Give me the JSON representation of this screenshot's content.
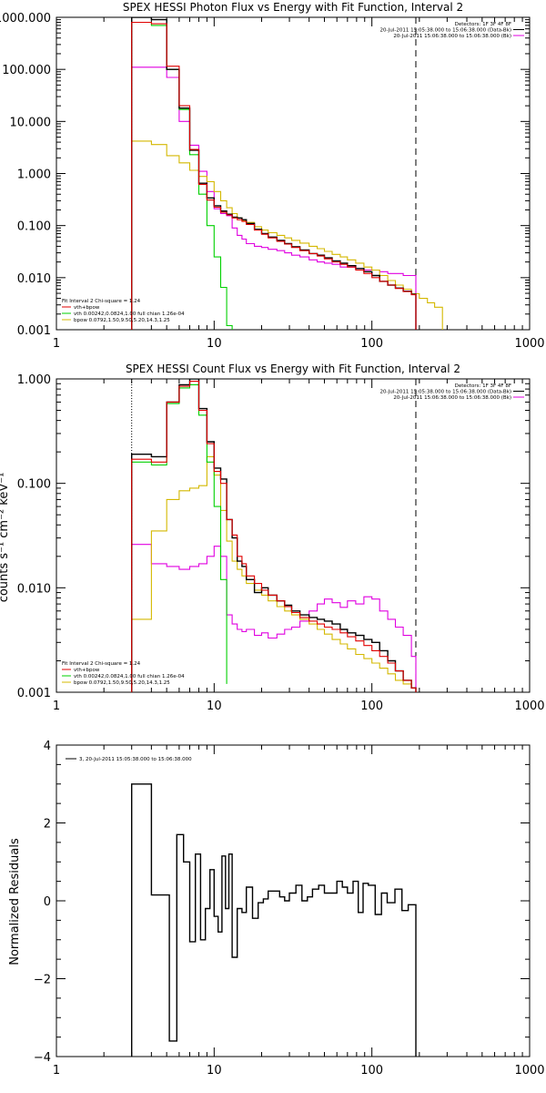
{
  "colors": {
    "data": "#000000",
    "total": "#e00000",
    "vth": "#00d000",
    "bpow": "#d4b800",
    "bk": "#e000e0"
  },
  "chart_data": [
    {
      "type": "line",
      "title": "SPEX HESSI Photon Flux vs Energy with Fit Function, Interval 2",
      "xlabel": "",
      "ylabel": "",
      "xscale": "log",
      "yscale": "log",
      "xlim": [
        1,
        1000
      ],
      "ylim": [
        0.001,
        1000
      ],
      "xticks": [
        "1",
        "10",
        "100",
        "1000"
      ],
      "yticks": [
        "0.001",
        "0.010",
        "0.100",
        "1.000",
        "10.000",
        "100.000",
        "1000.000"
      ],
      "vlines_dotted": [
        3.0
      ],
      "vlines_dashed": [
        190
      ],
      "legend_top_right": [
        "Detectors: 1F 3F 4F 8F",
        "20-Jul-2011 15:05:38.000 to 15:06:38.000 (Data-Bk)",
        "20-Jul-2011 15:06:38.000 to 15:06:38.000 (Bk)"
      ],
      "legend_bottom_left": [
        "Fit Interval 2   Chi-square = 1.24",
        "vth+bpow",
        "vth 0.00242,0.0824,1.00  full chian 1.26e-04",
        "bpow 0.0792,1.50,9.50,5.20,14.3,1.25"
      ],
      "series": [
        {
          "role": "data",
          "edges": [
            3.0,
            4.0,
            5.0,
            6.0,
            7.0,
            8.0,
            9.0,
            10.0,
            11.0,
            12.0,
            13.0,
            14.0,
            15.0,
            16.0,
            18.0,
            20.0,
            22.0,
            25.0,
            28.0,
            31.0,
            35.0,
            40.0,
            45.0,
            50.0,
            56.0,
            63.0,
            70.0,
            79.0,
            89.0,
            100.0,
            112.0,
            126.0,
            141.0,
            158.0,
            178.0,
            190.0
          ],
          "values": [
            1000,
            900,
            100,
            18,
            2.8,
            0.65,
            0.34,
            0.24,
            0.19,
            0.165,
            0.145,
            0.14,
            0.13,
            0.11,
            0.085,
            0.07,
            0.06,
            0.052,
            0.045,
            0.039,
            0.034,
            0.029,
            0.027,
            0.024,
            0.021,
            0.019,
            0.017,
            0.015,
            0.013,
            0.011,
            0.0085,
            0.0072,
            0.0063,
            0.0055,
            0.0048
          ]
        },
        {
          "role": "total",
          "edges": [
            3.0,
            4.0,
            5.0,
            6.0,
            7.0,
            8.0,
            9.0,
            10.0,
            11.0,
            12.0,
            13.0,
            14.0,
            15.0,
            16.0,
            18.0,
            20.0,
            22.0,
            25.0,
            28.0,
            31.0,
            35.0,
            40.0,
            45.0,
            50.0,
            56.0,
            63.0,
            70.0,
            79.0,
            89.0,
            100.0,
            112.0,
            126.0,
            141.0,
            158.0,
            178.0,
            190.0
          ],
          "values": [
            800,
            750,
            115,
            20,
            2.9,
            0.62,
            0.31,
            0.225,
            0.18,
            0.16,
            0.14,
            0.13,
            0.12,
            0.105,
            0.082,
            0.068,
            0.058,
            0.05,
            0.044,
            0.038,
            0.033,
            0.029,
            0.026,
            0.023,
            0.02,
            0.018,
            0.016,
            0.014,
            0.012,
            0.01,
            0.0085,
            0.0072,
            0.0062,
            0.0054,
            0.0047
          ]
        },
        {
          "role": "vth",
          "edges": [
            3.0,
            4.0,
            5.0,
            6.0,
            7.0,
            8.0,
            9.0,
            10.0,
            11.0,
            12.0,
            13.0,
            14.0
          ],
          "values": [
            800,
            700,
            100,
            17,
            2.3,
            0.4,
            0.1,
            0.025,
            0.0065,
            0.0012,
            0.0003
          ]
        },
        {
          "role": "bpow",
          "edges": [
            3.0,
            4.0,
            5.0,
            6.0,
            7.0,
            8.0,
            9.0,
            10.0,
            11.0,
            12.0,
            13.0,
            14.0,
            15.0,
            16.0,
            18.0,
            20.0,
            22.0,
            25.0,
            28.0,
            31.0,
            35.0,
            40.0,
            45.0,
            50.0,
            56.0,
            63.0,
            70.0,
            79.0,
            89.0,
            100.0,
            112.0,
            126.0,
            141.0,
            158.0,
            178.0,
            200.0,
            225.0,
            250.0,
            280.0
          ],
          "values": [
            4.2,
            3.6,
            2.2,
            1.6,
            1.15,
            0.88,
            0.7,
            0.45,
            0.3,
            0.22,
            0.17,
            0.14,
            0.125,
            0.115,
            0.095,
            0.082,
            0.073,
            0.065,
            0.058,
            0.052,
            0.046,
            0.04,
            0.036,
            0.032,
            0.028,
            0.025,
            0.022,
            0.019,
            0.016,
            0.014,
            0.011,
            0.0088,
            0.0072,
            0.006,
            0.0049,
            0.004,
            0.0033,
            0.0027
          ]
        },
        {
          "role": "bk",
          "edges": [
            3.0,
            5.0,
            6.0,
            7.0,
            8.0,
            9.0,
            10.0,
            11.0,
            12.0,
            13.0,
            14.0,
            15.0,
            16.0,
            18.0,
            20.0,
            22.0,
            25.0,
            28.0,
            31.0,
            35.0,
            40.0,
            45.0,
            50.0,
            56.0,
            63.0,
            70.0,
            79.0,
            89.0,
            100.0,
            112.0,
            126.0,
            141.0,
            158.0,
            178.0,
            190.0
          ],
          "values": [
            110,
            70,
            10,
            3.5,
            1.1,
            0.45,
            0.21,
            0.17,
            0.155,
            0.09,
            0.065,
            0.055,
            0.045,
            0.04,
            0.038,
            0.035,
            0.033,
            0.03,
            0.027,
            0.025,
            0.022,
            0.02,
            0.019,
            0.018,
            0.016,
            0.016,
            0.015,
            0.014,
            0.014,
            0.013,
            0.012,
            0.012,
            0.011,
            0.011
          ]
        }
      ]
    },
    {
      "type": "line",
      "title": "SPEX HESSI Count Flux vs Energy with Fit Function, Interval 2",
      "xlabel": "",
      "ylabel": "counts s⁻¹ cm⁻² keV⁻¹",
      "xscale": "log",
      "yscale": "log",
      "xlim": [
        1,
        1000
      ],
      "ylim": [
        0.001,
        1
      ],
      "xticks": [
        "1",
        "10",
        "100",
        "1000"
      ],
      "yticks": [
        "0.001",
        "0.010",
        "0.100",
        "1.000"
      ],
      "vlines_dotted": [
        3.0
      ],
      "vlines_dashed": [
        190
      ],
      "legend_top_right": [
        "Detectors: 1F 3F 4F 8F",
        "20-Jul-2011 15:05:38.000 to 15:06:38.000 (Data-Bk)",
        "20-Jul-2011 15:06:38.000 to 15:06:38.000 (Bk)"
      ],
      "legend_bottom_left": [
        "Fit Interval 2   Chi-square = 1.24",
        "vth+bpow",
        "vth 0.00242,0.0824,1.00  full chian 1.26e-04",
        "bpow 0.0792,1.50,9.50,5.20,14.3,1.25"
      ],
      "series": [
        {
          "role": "data",
          "edges": [
            3.0,
            4.0,
            5.0,
            6.0,
            7.0,
            8.0,
            9.0,
            10.0,
            11.0,
            12.0,
            13.0,
            14.0,
            15.0,
            16.0,
            18.0,
            20.0,
            22.0,
            25.0,
            28.0,
            31.0,
            35.0,
            40.0,
            45.0,
            50.0,
            56.0,
            63.0,
            70.0,
            79.0,
            89.0,
            100.0,
            112.0,
            126.0,
            141.0,
            158.0,
            178.0,
            190.0
          ],
          "values": [
            0.19,
            0.18,
            0.6,
            0.88,
            1.0,
            0.52,
            0.25,
            0.14,
            0.11,
            0.045,
            0.03,
            0.018,
            0.016,
            0.012,
            0.009,
            0.01,
            0.0085,
            0.0075,
            0.0068,
            0.006,
            0.0055,
            0.0052,
            0.005,
            0.0048,
            0.0045,
            0.004,
            0.0037,
            0.0035,
            0.0032,
            0.003,
            0.0025,
            0.002,
            0.0016,
            0.0013,
            0.0011
          ]
        },
        {
          "role": "total",
          "edges": [
            3.0,
            4.0,
            5.0,
            6.0,
            7.0,
            8.0,
            9.0,
            10.0,
            11.0,
            12.0,
            13.0,
            14.0,
            15.0,
            16.0,
            18.0,
            20.0,
            22.0,
            25.0,
            28.0,
            31.0,
            35.0,
            40.0,
            45.0,
            50.0,
            56.0,
            63.0,
            70.0,
            79.0,
            89.0,
            100.0,
            112.0,
            126.0,
            141.0,
            158.0,
            178.0,
            190.0
          ],
          "values": [
            0.17,
            0.16,
            0.6,
            0.85,
            0.95,
            0.5,
            0.24,
            0.13,
            0.1,
            0.045,
            0.032,
            0.02,
            0.017,
            0.013,
            0.011,
            0.0095,
            0.0085,
            0.0075,
            0.0066,
            0.0058,
            0.0052,
            0.0048,
            0.0045,
            0.0042,
            0.004,
            0.0037,
            0.0034,
            0.0031,
            0.0028,
            0.0025,
            0.0022,
            0.0019,
            0.0016,
            0.0013,
            0.0011
          ]
        },
        {
          "role": "vth",
          "edges": [
            3.0,
            4.0,
            5.0,
            6.0,
            7.0,
            8.0,
            9.0,
            10.0,
            11.0,
            12.0
          ],
          "values": [
            0.16,
            0.15,
            0.58,
            0.82,
            0.88,
            0.45,
            0.16,
            0.06,
            0.012,
            0.0012
          ]
        },
        {
          "role": "bpow",
          "edges": [
            3.0,
            4.0,
            5.0,
            6.0,
            7.0,
            8.0,
            9.0,
            10.0,
            11.0,
            12.0,
            13.0,
            14.0,
            15.0,
            16.0,
            18.0,
            20.0,
            22.0,
            25.0,
            28.0,
            31.0,
            35.0,
            40.0,
            45.0,
            50.0,
            56.0,
            63.0,
            70.0,
            79.0,
            89.0,
            100.0,
            112.0,
            126.0,
            141.0,
            158.0,
            178.0,
            190.0
          ],
          "values": [
            0.005,
            0.035,
            0.07,
            0.085,
            0.09,
            0.095,
            0.18,
            0.12,
            0.055,
            0.028,
            0.018,
            0.015,
            0.013,
            0.011,
            0.0095,
            0.0085,
            0.0075,
            0.0066,
            0.006,
            0.0055,
            0.005,
            0.0045,
            0.004,
            0.0036,
            0.0032,
            0.0029,
            0.0026,
            0.0023,
            0.0021,
            0.0019,
            0.0017,
            0.0015,
            0.0013,
            0.0012,
            0.0011
          ]
        },
        {
          "role": "bk",
          "edges": [
            3.0,
            4.0,
            5.0,
            6.0,
            7.0,
            8.0,
            9.0,
            10.0,
            11.0,
            12.0,
            13.0,
            14.0,
            15.0,
            16.0,
            18.0,
            20.0,
            22.0,
            25.0,
            28.0,
            31.0,
            35.0,
            40.0,
            45.0,
            50.0,
            56.0,
            63.0,
            70.0,
            79.0,
            89.0,
            100.0,
            112.0,
            126.0,
            141.0,
            158.0,
            178.0,
            190.0
          ],
          "values": [
            0.026,
            0.017,
            0.016,
            0.015,
            0.016,
            0.017,
            0.02,
            0.025,
            0.02,
            0.0055,
            0.0045,
            0.004,
            0.0038,
            0.004,
            0.0035,
            0.0037,
            0.0033,
            0.0036,
            0.004,
            0.0042,
            0.0048,
            0.006,
            0.007,
            0.0078,
            0.0072,
            0.0065,
            0.0075,
            0.007,
            0.0082,
            0.0078,
            0.006,
            0.005,
            0.0042,
            0.0035,
            0.0022
          ]
        }
      ]
    },
    {
      "type": "line",
      "title": "",
      "xlabel": "",
      "ylabel": "Normalized Residuals",
      "xscale": "log",
      "yscale": "linear",
      "xlim": [
        1,
        1000
      ],
      "ylim": [
        -4,
        4
      ],
      "xticks": [
        "1",
        "10",
        "100",
        "1000"
      ],
      "yticks": [
        "−4",
        "−2",
        "0",
        "2",
        "4"
      ],
      "legend_top_left": [
        "3, 20-Jul-2011 15:05:38.000 to 15:06:38.000"
      ],
      "series": [
        {
          "role": "data",
          "edges": [
            3.0,
            4.0,
            4.6,
            5.2,
            5.8,
            6.4,
            7.0,
            7.6,
            8.2,
            8.8,
            9.4,
            10.0,
            10.6,
            11.2,
            11.8,
            12.4,
            13.0,
            14.0,
            15.0,
            16.0,
            17.5,
            19.0,
            20.5,
            22.0,
            24.0,
            26.0,
            28.0,
            30.0,
            33.0,
            36.0,
            39.0,
            42.0,
            46.0,
            50.0,
            55.0,
            60.0,
            65.0,
            70.0,
            76.0,
            82.0,
            88.0,
            95.0,
            105.0,
            115.0,
            125.0,
            140.0,
            155.0,
            170.0,
            190.0
          ],
          "values": [
            3.0,
            0.15,
            0.15,
            -3.6,
            1.7,
            1.0,
            -1.05,
            1.2,
            -1.0,
            -0.2,
            0.8,
            -0.4,
            -0.8,
            1.15,
            -0.2,
            1.2,
            -1.45,
            -0.2,
            -0.3,
            0.35,
            -0.45,
            -0.05,
            0.05,
            0.25,
            0.25,
            0.1,
            0.0,
            0.2,
            0.4,
            0.0,
            0.1,
            0.3,
            0.4,
            0.2,
            0.2,
            0.5,
            0.35,
            0.2,
            0.5,
            -0.3,
            0.45,
            0.4,
            -0.35,
            0.2,
            -0.05,
            0.3,
            -0.25,
            -0.1
          ]
        }
      ]
    }
  ]
}
